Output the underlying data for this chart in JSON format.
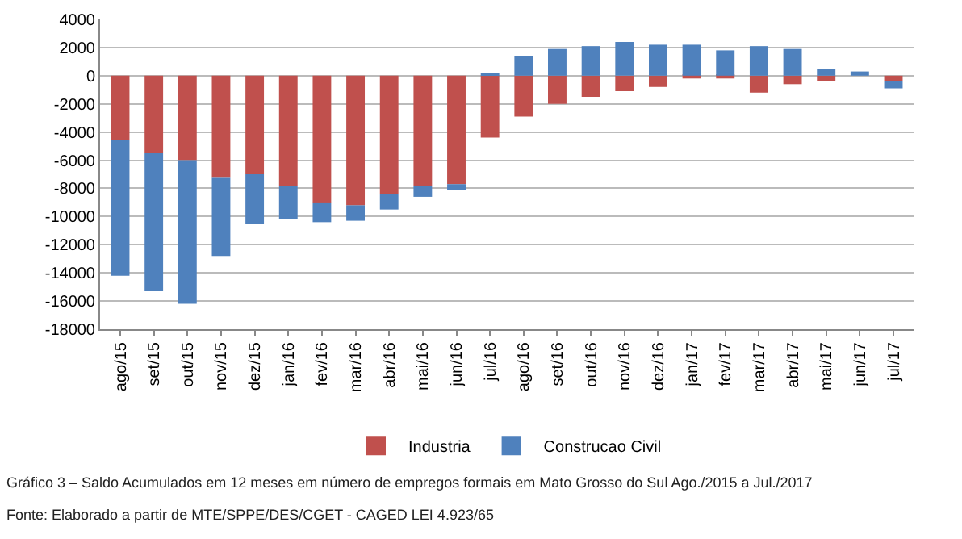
{
  "chart_data": {
    "type": "bar",
    "stacked": true,
    "categories": [
      "ago/15",
      "set/15",
      "out/15",
      "nov/15",
      "dez/15",
      "jan/16",
      "fev/16",
      "mar/16",
      "abr/16",
      "mai/16",
      "jun/16",
      "jul/16",
      "ago/16",
      "set/16",
      "out/16",
      "nov/16",
      "dez/16",
      "jan/17",
      "fev/17",
      "mar/17",
      "abr/17",
      "mai/17",
      "jun/17",
      "jul/17"
    ],
    "series": [
      {
        "name": "Industria",
        "color": "#c0504d",
        "values": [
          -4600,
          -5500,
          -6000,
          -7200,
          -7000,
          -7800,
          -9000,
          -9200,
          -8400,
          -7800,
          -7700,
          -4400,
          -2900,
          -2000,
          -1500,
          -1100,
          -800,
          -200,
          -200,
          -1200,
          -600,
          -400,
          null,
          -400
        ]
      },
      {
        "name": "Construcao Civil",
        "color": "#4f81bd",
        "values": [
          -9600,
          -9800,
          -10200,
          -5600,
          -3500,
          -2400,
          -1400,
          -1100,
          -1100,
          -800,
          -400,
          200,
          1400,
          1900,
          2100,
          2400,
          2200,
          2200,
          1800,
          2100,
          1900,
          500,
          300,
          -500
        ]
      }
    ],
    "ylim": [
      -18000,
      4000
    ],
    "yticks": [
      -18000,
      -16000,
      -14000,
      -12000,
      -10000,
      -8000,
      -6000,
      -4000,
      -2000,
      0,
      2000,
      4000
    ],
    "grid": "y",
    "legend": "bottom",
    "annotations": [
      "Gráfico 3 – Saldo Acumulados em 12 meses em número de empregos formais em Mato Grosso do Sul Ago./2015 a Jul./2017",
      "Fonte: Elaborado a partir de MTE/SPPE/DES/CGET - CAGED LEI 4.923/65"
    ]
  }
}
